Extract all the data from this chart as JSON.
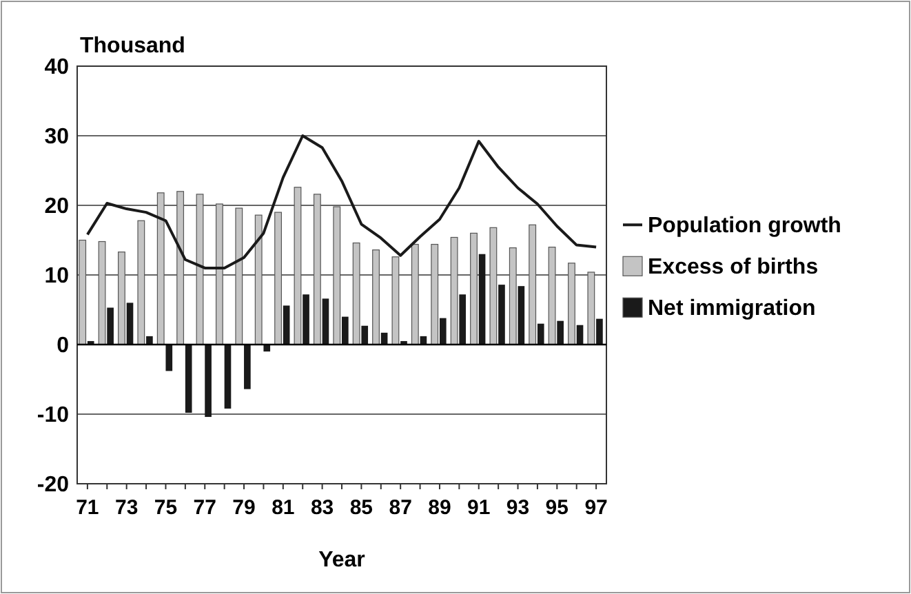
{
  "chart_data": {
    "type": "bar",
    "ylabel": "Thousand",
    "xlabel": "Year",
    "categories": [
      "71",
      null,
      "73",
      null,
      "75",
      null,
      "77",
      null,
      "79",
      null,
      "81",
      null,
      "83",
      null,
      "85",
      null,
      "87",
      null,
      "89",
      null,
      "91",
      null,
      "93",
      null,
      "95",
      null,
      "97"
    ],
    "series": [
      {
        "name": "Population growth",
        "type": "line",
        "color": "#1a1a1a",
        "values": [
          15.8,
          20.3,
          19.5,
          19,
          17.8,
          12.2,
          11,
          11,
          12.5,
          16,
          24,
          30,
          28.3,
          23.5,
          17.3,
          15.3,
          12.8,
          15.5,
          18,
          22.5,
          29.2,
          25.5,
          22.5,
          20.2,
          17,
          14.3,
          14
        ]
      },
      {
        "name": "Excess of births",
        "color": "#c4c4c4",
        "values": [
          15,
          14.8,
          13.3,
          17.8,
          21.8,
          22,
          21.6,
          20.2,
          19.6,
          18.6,
          19,
          22.6,
          21.6,
          19.8,
          14.6,
          13.6,
          12.6,
          14.4,
          14.4,
          15.4,
          16,
          16.8,
          13.9,
          17.2,
          14,
          11.7,
          10.4
        ]
      },
      {
        "name": "Net immigration",
        "color": "#1a1a1a",
        "values": [
          0.5,
          5.3,
          6,
          1.2,
          -3.8,
          -9.8,
          -10.4,
          -9.2,
          -6.4,
          -1,
          5.6,
          7.2,
          6.6,
          4,
          2.7,
          1.7,
          0.5,
          1.2,
          3.8,
          7.2,
          13,
          8.6,
          8.4,
          3,
          3.4,
          2.8,
          3.7
        ]
      }
    ],
    "ylim": [
      -20,
      40
    ],
    "yticks": [
      -20,
      -10,
      0,
      10,
      20,
      30,
      40
    ],
    "grid": "y",
    "legend": "right"
  }
}
